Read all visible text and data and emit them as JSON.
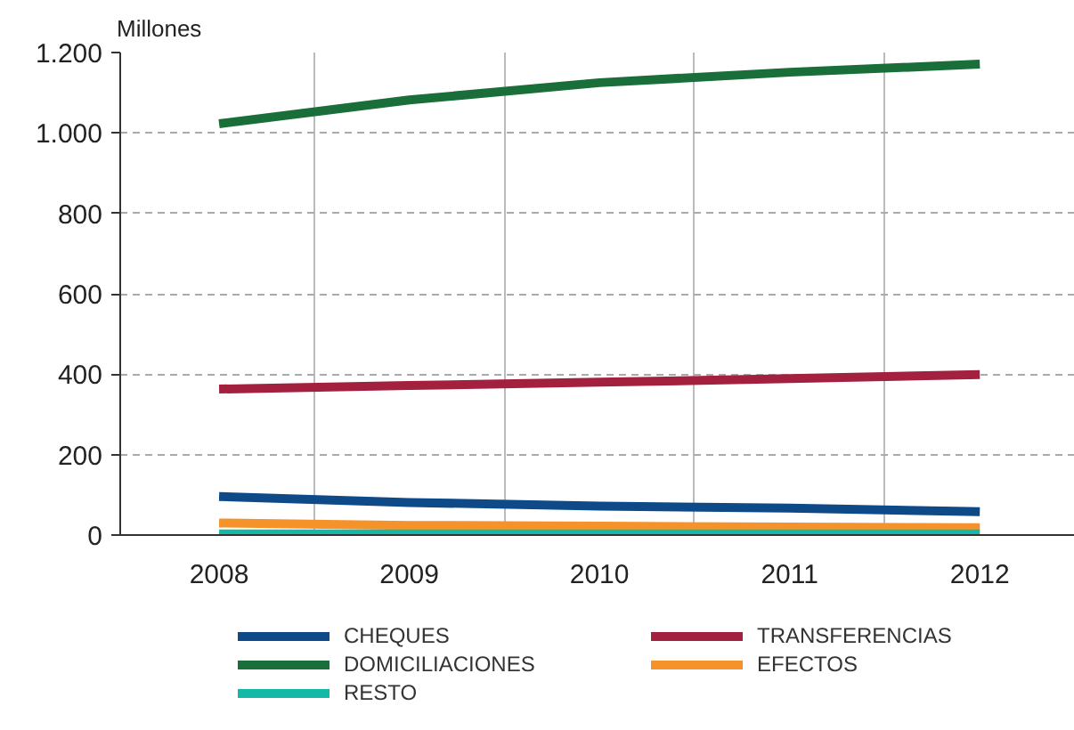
{
  "chart_data": {
    "type": "line",
    "ylabel": "Millones",
    "categories": [
      "2008",
      "2009",
      "2010",
      "2011",
      "2012"
    ],
    "ylim": [
      0,
      1200
    ],
    "yticks": [
      0,
      200,
      400,
      600,
      800,
      {
        "value": 1000,
        "label": "1.000"
      },
      {
        "value": 1200,
        "label": "1.200"
      }
    ],
    "grid": true,
    "legend": "bottom",
    "line_style": "solid",
    "series": [
      {
        "name": "CHEQUES",
        "color": "#0e4a87",
        "values": [
          96,
          81,
          72,
          67,
          58
        ]
      },
      {
        "name": "TRANSFERENCIAS",
        "color": "#a3203e",
        "values": [
          363,
          372,
          380,
          389,
          399
        ]
      },
      {
        "name": "DOMICILIACIONES",
        "color": "#1a6e3a",
        "values": [
          1023,
          1082,
          1125,
          1151,
          1171
        ]
      },
      {
        "name": "EFECTOS",
        "color": "#f5922a",
        "values": [
          30,
          24,
          22,
          20,
          18
        ]
      },
      {
        "name": "RESTO",
        "color": "#14b8a6",
        "values": [
          3,
          3,
          3,
          3,
          3
        ]
      }
    ]
  }
}
